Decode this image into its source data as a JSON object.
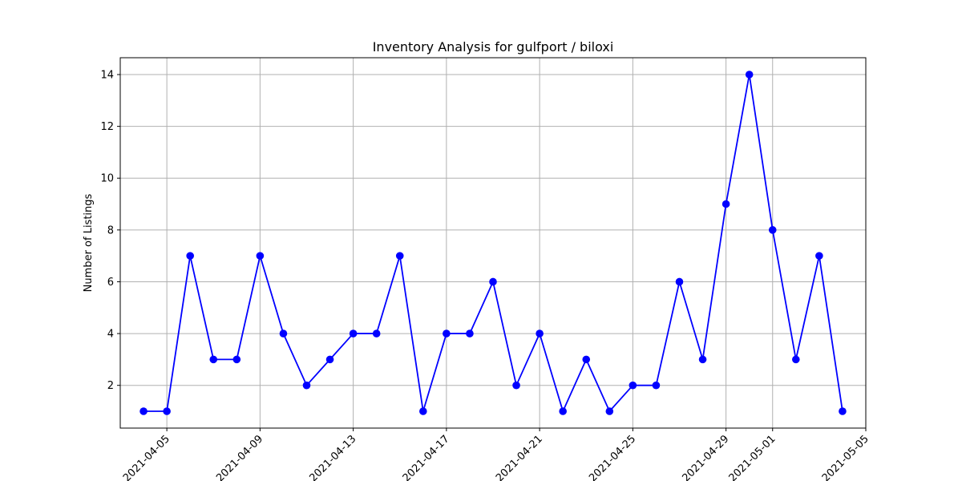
{
  "chart_data": {
    "type": "line",
    "title": "Inventory Analysis for gulfport / biloxi",
    "xlabel": "",
    "ylabel": "Number of Listings",
    "grid": true,
    "x_ticks": [
      "2021-04-05",
      "2021-04-09",
      "2021-04-13",
      "2021-04-17",
      "2021-04-21",
      "2021-04-25",
      "2021-04-29",
      "2021-05-01",
      "2021-05-05"
    ],
    "y_ticks": [
      "2",
      "4",
      "6",
      "8",
      "10",
      "12",
      "14"
    ],
    "xlim": [
      "2021-04-03",
      "2021-05-05"
    ],
    "ylim": [
      0.35,
      14.65
    ],
    "series": [
      {
        "color": "#0000ff",
        "marker": "circle",
        "x": [
          "2021-04-04",
          "2021-04-05",
          "2021-04-06",
          "2021-04-07",
          "2021-04-08",
          "2021-04-09",
          "2021-04-10",
          "2021-04-11",
          "2021-04-12",
          "2021-04-13",
          "2021-04-14",
          "2021-04-15",
          "2021-04-16",
          "2021-04-17",
          "2021-04-18",
          "2021-04-19",
          "2021-04-20",
          "2021-04-21",
          "2021-04-22",
          "2021-04-23",
          "2021-04-24",
          "2021-04-25",
          "2021-04-26",
          "2021-04-27",
          "2021-04-28",
          "2021-04-29",
          "2021-04-30",
          "2021-05-01",
          "2021-05-02",
          "2021-05-03",
          "2021-05-04"
        ],
        "values": [
          1,
          1,
          7,
          3,
          3,
          7,
          4,
          2,
          3,
          4,
          4,
          7,
          1,
          4,
          4,
          6,
          2,
          4,
          1,
          3,
          1,
          2,
          2,
          6,
          3,
          9,
          14,
          8,
          3,
          7,
          1
        ]
      }
    ]
  }
}
